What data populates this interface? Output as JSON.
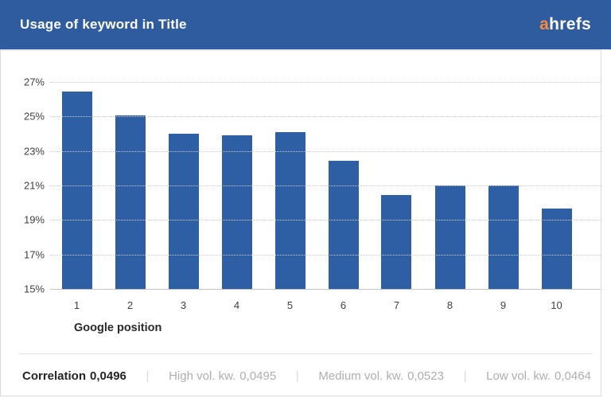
{
  "header": {
    "title": "Usage of keyword in Title",
    "logo_prefix": "a",
    "logo_suffix": "hrefs"
  },
  "chart_data": {
    "type": "bar",
    "title": "Usage of keyword in Title",
    "categories": [
      "1",
      "2",
      "3",
      "4",
      "5",
      "6",
      "7",
      "8",
      "9",
      "10"
    ],
    "values": [
      26.45,
      25.05,
      24.0,
      23.9,
      24.1,
      22.45,
      20.45,
      21.0,
      21.0,
      19.65
    ],
    "xlabel": "Google position",
    "ylabel": "",
    "ylim": [
      15,
      27
    ],
    "yticks": [
      "15%",
      "17%",
      "19%",
      "21%",
      "23%",
      "25%",
      "27%"
    ],
    "grid": "horizontal-dotted",
    "legend_position": "none"
  },
  "footer": {
    "separator": "|",
    "items": [
      {
        "label": "Correlation",
        "value": "0,0496",
        "emphasis": true
      },
      {
        "label": "High vol. kw.",
        "value": "0,0495",
        "emphasis": false
      },
      {
        "label": "Medium vol. kw.",
        "value": "0,0523",
        "emphasis": false
      },
      {
        "label": "Low vol. kw.",
        "value": "0,0464",
        "emphasis": false
      }
    ]
  },
  "colors": {
    "header_bg": "#2e5c9f",
    "bar": "#2e5fa4",
    "logo_accent": "#f68b3c",
    "logo_text": "#ffffff",
    "grid_line": "#cccccc",
    "axis_line": "#c4c4c4",
    "tick_text": "#3f3f3f",
    "footer_muted": "#aeaeae",
    "card_border": "#d9d9d9"
  }
}
